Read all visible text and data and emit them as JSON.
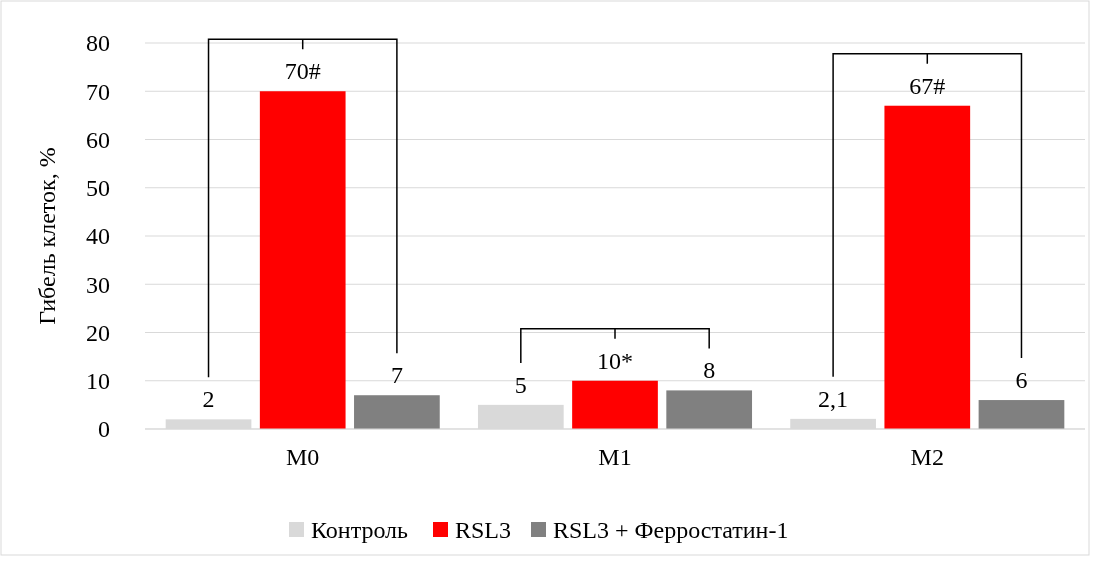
{
  "chart_data": {
    "type": "bar",
    "ylabel": "Гибель клеток, %",
    "categories": [
      "M0",
      "M1",
      "M2"
    ],
    "series": [
      {
        "name": "Контроль",
        "color": "#d9d9d9",
        "values": [
          2,
          5,
          2.1
        ],
        "value_labels": [
          "2",
          "5",
          "2,1"
        ]
      },
      {
        "name": "RSL3",
        "color": "#ff0000",
        "values": [
          70,
          10,
          67
        ],
        "value_labels": [
          "70#",
          "10*",
          "67#"
        ]
      },
      {
        "name": "RSL3 + Ферростатин-1",
        "color": "#808080",
        "values": [
          7,
          8,
          6
        ],
        "value_labels": [
          "7",
          "8",
          "6"
        ]
      }
    ],
    "ylim": [
      0,
      80
    ],
    "yticks": [
      0,
      10,
      20,
      30,
      40,
      50,
      60,
      70,
      80
    ],
    "grid": "y",
    "legend": "bottom"
  }
}
